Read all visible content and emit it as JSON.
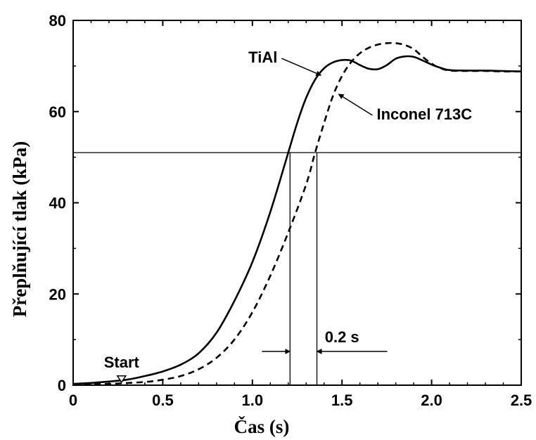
{
  "chart_data": {
    "type": "line",
    "xlabel": "Čas (s)",
    "ylabel": "Přeplňující tlak (kPa)",
    "xlim": [
      0,
      2.5
    ],
    "ylim": [
      0,
      80
    ],
    "x_ticks": [
      "0",
      "0.5",
      "1.0",
      "1.5",
      "2.0",
      "2.5"
    ],
    "y_ticks": [
      "0",
      "20",
      "40",
      "60",
      "80"
    ],
    "grid": false,
    "series": [
      {
        "name": "TiAl",
        "style": "solid",
        "x": [
          0,
          0.1,
          0.2,
          0.3,
          0.4,
          0.5,
          0.6,
          0.7,
          0.8,
          0.9,
          1.0,
          1.1,
          1.2,
          1.25,
          1.3,
          1.35,
          1.4,
          1.45,
          1.5,
          1.55,
          1.6,
          1.65,
          1.7,
          1.75,
          1.8,
          1.85,
          1.9,
          1.95,
          2.0,
          2.05,
          2.1,
          2.2,
          2.3,
          2.4,
          2.5
        ],
        "y": [
          0.3,
          0.5,
          0.8,
          1.2,
          2.0,
          3.0,
          4.5,
          7.0,
          11.5,
          18.5,
          27.0,
          38.0,
          51.0,
          57.5,
          63.0,
          67.0,
          69.5,
          70.8,
          71.3,
          71.2,
          70.2,
          69.4,
          69.3,
          70.2,
          71.6,
          72.1,
          72.0,
          71.2,
          70.3,
          69.6,
          69.1,
          69.0,
          69.0,
          68.9,
          68.8
        ]
      },
      {
        "name": "Inconel 713C",
        "style": "dashed",
        "x": [
          0,
          0.2,
          0.4,
          0.5,
          0.6,
          0.7,
          0.8,
          0.9,
          1.0,
          1.1,
          1.2,
          1.3,
          1.35,
          1.4,
          1.45,
          1.5,
          1.55,
          1.6,
          1.65,
          1.7,
          1.75,
          1.8,
          1.85,
          1.9,
          1.95,
          2.0,
          2.05,
          2.1,
          2.2,
          2.3,
          2.4,
          2.5
        ],
        "y": [
          0.2,
          0.3,
          0.7,
          1.2,
          2.0,
          3.5,
          6.0,
          10.0,
          16.0,
          24.0,
          33.5,
          44.0,
          51.0,
          57.5,
          63.5,
          67.8,
          70.8,
          72.8,
          74.0,
          74.7,
          75.0,
          75.0,
          74.6,
          73.7,
          72.0,
          70.5,
          69.5,
          69.0,
          68.9,
          68.9,
          68.8,
          68.8
        ]
      }
    ],
    "reference_lines": {
      "horizontal_y": 51,
      "vertical_x": [
        1.21,
        1.36
      ]
    },
    "annotations": [
      {
        "text": "TiAl",
        "target_series": "TiAl",
        "x": 1.32,
        "y": 69.5
      },
      {
        "text": "Inconel 713C",
        "target_series": "Inconel 713C",
        "x": 1.45,
        "y": 59.5
      },
      {
        "text": "0.2 s",
        "x": 1.5,
        "y": 10
      },
      {
        "text": "Start",
        "x": 0.27,
        "y": 0.5
      }
    ]
  }
}
